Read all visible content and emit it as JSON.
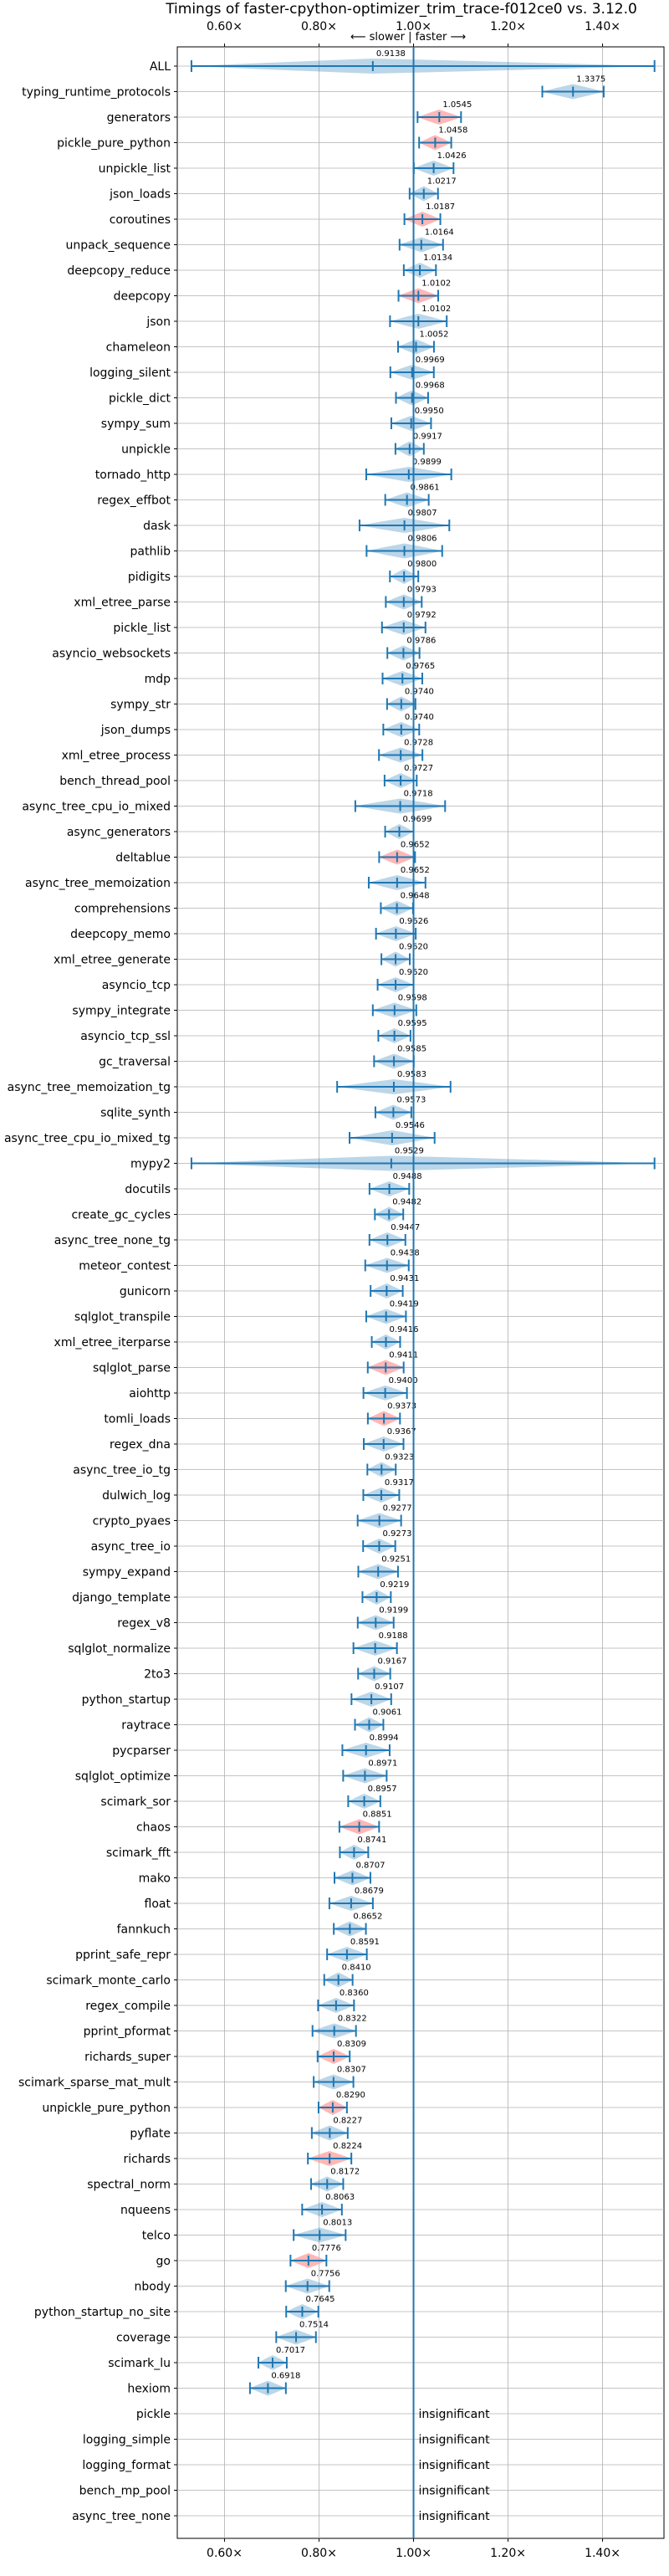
{
  "chart_data": {
    "type": "violin",
    "title": "Timings of faster-cpython-optimizer_trim_trace-f012ce0 vs. 3.12.0",
    "direction_label": "⟵ slower | faster ⟶",
    "xlim": [
      0.5,
      1.53
    ],
    "xticks": [
      0.6,
      0.8,
      1.0,
      1.2,
      1.4
    ],
    "xtick_labels": [
      "0.60×",
      "0.80×",
      "1.00×",
      "1.20×",
      "1.40×"
    ],
    "reference_line": 1.0,
    "grid": true,
    "colors": {
      "normal": "#1f77b4",
      "highlight": "#ff9896",
      "reference": "#1f77b4"
    },
    "insignificant_text": "insignificant",
    "benchmarks": [
      {
        "name": "ALL",
        "value": 0.9138,
        "label": "0.9138"
      },
      {
        "name": "typing_runtime_protocols",
        "value": 1.3375,
        "label": "1.3375"
      },
      {
        "name": "generators",
        "value": 1.0545,
        "label": "1.0545",
        "highlight": true
      },
      {
        "name": "pickle_pure_python",
        "value": 1.0458,
        "label": "1.0458",
        "highlight": true
      },
      {
        "name": "unpickle_list",
        "value": 1.0426,
        "label": "1.0426"
      },
      {
        "name": "json_loads",
        "value": 1.0217,
        "label": "1.0217"
      },
      {
        "name": "coroutines",
        "value": 1.0187,
        "label": "1.0187",
        "highlight": true
      },
      {
        "name": "unpack_sequence",
        "value": 1.0164,
        "label": "1.0164"
      },
      {
        "name": "deepcopy_reduce",
        "value": 1.0134,
        "label": "1.0134"
      },
      {
        "name": "deepcopy",
        "value": 1.0102,
        "label": "1.0102",
        "highlight": true
      },
      {
        "name": "json",
        "value": 1.0102,
        "label": "1.0102"
      },
      {
        "name": "chameleon",
        "value": 1.0052,
        "label": "1.0052"
      },
      {
        "name": "logging_silent",
        "value": 0.9969,
        "label": "0.9969"
      },
      {
        "name": "pickle_dict",
        "value": 0.9968,
        "label": "0.9968"
      },
      {
        "name": "sympy_sum",
        "value": 0.995,
        "label": "0.9950"
      },
      {
        "name": "unpickle",
        "value": 0.9917,
        "label": "0.9917"
      },
      {
        "name": "tornado_http",
        "value": 0.9899,
        "label": "0.9899"
      },
      {
        "name": "regex_effbot",
        "value": 0.9861,
        "label": "0.9861"
      },
      {
        "name": "dask",
        "value": 0.9807,
        "label": "0.9807"
      },
      {
        "name": "pathlib",
        "value": 0.9806,
        "label": "0.9806"
      },
      {
        "name": "pidigits",
        "value": 0.98,
        "label": "0.9800"
      },
      {
        "name": "xml_etree_parse",
        "value": 0.9793,
        "label": "0.9793"
      },
      {
        "name": "pickle_list",
        "value": 0.9792,
        "label": "0.9792"
      },
      {
        "name": "asyncio_websockets",
        "value": 0.9786,
        "label": "0.9786"
      },
      {
        "name": "mdp",
        "value": 0.9765,
        "label": "0.9765"
      },
      {
        "name": "sympy_str",
        "value": 0.974,
        "label": "0.9740"
      },
      {
        "name": "json_dumps",
        "value": 0.974,
        "label": "0.9740"
      },
      {
        "name": "xml_etree_process",
        "value": 0.9728,
        "label": "0.9728"
      },
      {
        "name": "bench_thread_pool",
        "value": 0.9727,
        "label": "0.9727"
      },
      {
        "name": "async_tree_cpu_io_mixed",
        "value": 0.9718,
        "label": "0.9718"
      },
      {
        "name": "async_generators",
        "value": 0.9699,
        "label": "0.9699"
      },
      {
        "name": "deltablue",
        "value": 0.9652,
        "label": "0.9652",
        "highlight": true
      },
      {
        "name": "async_tree_memoization",
        "value": 0.9652,
        "label": "0.9652"
      },
      {
        "name": "comprehensions",
        "value": 0.9648,
        "label": "0.9648"
      },
      {
        "name": "deepcopy_memo",
        "value": 0.9626,
        "label": "0.9626"
      },
      {
        "name": "xml_etree_generate",
        "value": 0.962,
        "label": "0.9620"
      },
      {
        "name": "asyncio_tcp",
        "value": 0.962,
        "label": "0.9620"
      },
      {
        "name": "sympy_integrate",
        "value": 0.9598,
        "label": "0.9598"
      },
      {
        "name": "asyncio_tcp_ssl",
        "value": 0.9595,
        "label": "0.9595"
      },
      {
        "name": "gc_traversal",
        "value": 0.9585,
        "label": "0.9585"
      },
      {
        "name": "async_tree_memoization_tg",
        "value": 0.9583,
        "label": "0.9583"
      },
      {
        "name": "sqlite_synth",
        "value": 0.9573,
        "label": "0.9573"
      },
      {
        "name": "async_tree_cpu_io_mixed_tg",
        "value": 0.9546,
        "label": "0.9546"
      },
      {
        "name": "mypy2",
        "value": 0.9529,
        "label": "0.9529"
      },
      {
        "name": "docutils",
        "value": 0.9488,
        "label": "0.9488"
      },
      {
        "name": "create_gc_cycles",
        "value": 0.9482,
        "label": "0.9482"
      },
      {
        "name": "async_tree_none_tg",
        "value": 0.9447,
        "label": "0.9447"
      },
      {
        "name": "meteor_contest",
        "value": 0.9438,
        "label": "0.9438"
      },
      {
        "name": "gunicorn",
        "value": 0.9431,
        "label": "0.9431"
      },
      {
        "name": "sqlglot_transpile",
        "value": 0.9419,
        "label": "0.9419"
      },
      {
        "name": "xml_etree_iterparse",
        "value": 0.9416,
        "label": "0.9416"
      },
      {
        "name": "sqlglot_parse",
        "value": 0.9411,
        "label": "0.9411",
        "highlight": true
      },
      {
        "name": "aiohttp",
        "value": 0.94,
        "label": "0.9400"
      },
      {
        "name": "tomli_loads",
        "value": 0.9373,
        "label": "0.9373",
        "highlight": true
      },
      {
        "name": "regex_dna",
        "value": 0.9367,
        "label": "0.9367"
      },
      {
        "name": "async_tree_io_tg",
        "value": 0.9323,
        "label": "0.9323"
      },
      {
        "name": "dulwich_log",
        "value": 0.9317,
        "label": "0.9317"
      },
      {
        "name": "crypto_pyaes",
        "value": 0.9277,
        "label": "0.9277"
      },
      {
        "name": "async_tree_io",
        "value": 0.9273,
        "label": "0.9273"
      },
      {
        "name": "sympy_expand",
        "value": 0.9251,
        "label": "0.9251"
      },
      {
        "name": "django_template",
        "value": 0.9219,
        "label": "0.9219"
      },
      {
        "name": "regex_v8",
        "value": 0.9199,
        "label": "0.9199"
      },
      {
        "name": "sqlglot_normalize",
        "value": 0.9188,
        "label": "0.9188"
      },
      {
        "name": "2to3",
        "value": 0.9167,
        "label": "0.9167"
      },
      {
        "name": "python_startup",
        "value": 0.9107,
        "label": "0.9107"
      },
      {
        "name": "raytrace",
        "value": 0.9061,
        "label": "0.9061"
      },
      {
        "name": "pycparser",
        "value": 0.8994,
        "label": "0.8994"
      },
      {
        "name": "sqlglot_optimize",
        "value": 0.8971,
        "label": "0.8971"
      },
      {
        "name": "scimark_sor",
        "value": 0.8957,
        "label": "0.8957"
      },
      {
        "name": "chaos",
        "value": 0.8851,
        "label": "0.8851",
        "highlight": true
      },
      {
        "name": "scimark_fft",
        "value": 0.8741,
        "label": "0.8741"
      },
      {
        "name": "mako",
        "value": 0.8707,
        "label": "0.8707"
      },
      {
        "name": "float",
        "value": 0.8679,
        "label": "0.8679"
      },
      {
        "name": "fannkuch",
        "value": 0.8652,
        "label": "0.8652"
      },
      {
        "name": "pprint_safe_repr",
        "value": 0.8591,
        "label": "0.8591"
      },
      {
        "name": "scimark_monte_carlo",
        "value": 0.841,
        "label": "0.8410"
      },
      {
        "name": "regex_compile",
        "value": 0.836,
        "label": "0.8360"
      },
      {
        "name": "pprint_pformat",
        "value": 0.8322,
        "label": "0.8322"
      },
      {
        "name": "richards_super",
        "value": 0.8309,
        "label": "0.8309",
        "highlight": true
      },
      {
        "name": "scimark_sparse_mat_mult",
        "value": 0.8307,
        "label": "0.8307"
      },
      {
        "name": "unpickle_pure_python",
        "value": 0.829,
        "label": "0.8290",
        "highlight": true
      },
      {
        "name": "pyflate",
        "value": 0.8227,
        "label": "0.8227"
      },
      {
        "name": "richards",
        "value": 0.8224,
        "label": "0.8224",
        "highlight": true
      },
      {
        "name": "spectral_norm",
        "value": 0.8172,
        "label": "0.8172"
      },
      {
        "name": "nqueens",
        "value": 0.8063,
        "label": "0.8063"
      },
      {
        "name": "telco",
        "value": 0.8013,
        "label": "0.8013"
      },
      {
        "name": "go",
        "value": 0.7776,
        "label": "0.7776",
        "highlight": true
      },
      {
        "name": "nbody",
        "value": 0.7756,
        "label": "0.7756"
      },
      {
        "name": "python_startup_no_site",
        "value": 0.7645,
        "label": "0.7645"
      },
      {
        "name": "coverage",
        "value": 0.7514,
        "label": "0.7514"
      },
      {
        "name": "scimark_lu",
        "value": 0.7017,
        "label": "0.7017"
      },
      {
        "name": "hexiom",
        "value": 0.6918,
        "label": "0.6918"
      },
      {
        "name": "pickle",
        "insignificant": true
      },
      {
        "name": "logging_simple",
        "insignificant": true
      },
      {
        "name": "logging_format",
        "insignificant": true
      },
      {
        "name": "bench_mp_pool",
        "insignificant": true
      },
      {
        "name": "async_tree_none",
        "insignificant": true
      }
    ]
  }
}
